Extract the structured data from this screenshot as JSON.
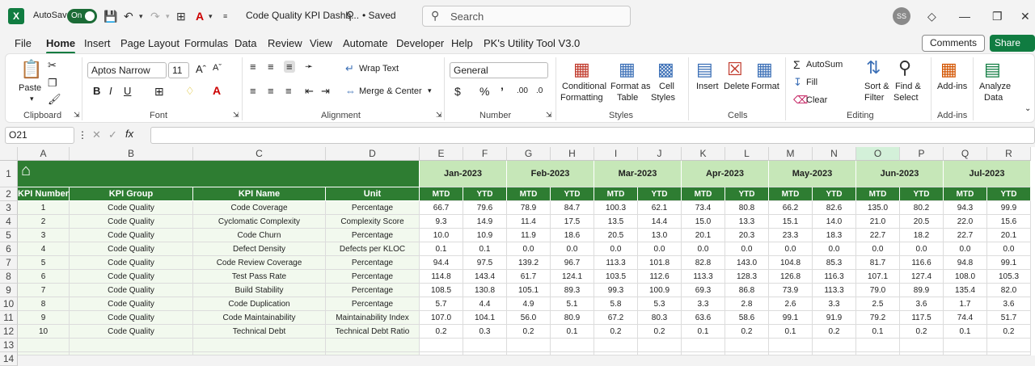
{
  "titlebar": {
    "app_icon": "X",
    "autosave_label": "AutoSave",
    "autosave_state": "On",
    "doc_title": "Code Quality KPI Dashb...",
    "saved_status": "• Saved",
    "search_placeholder": "Search",
    "user_initials": "SS"
  },
  "menu": [
    "File",
    "Home",
    "Insert",
    "Page Layout",
    "Formulas",
    "Data",
    "Review",
    "View",
    "Automate",
    "Developer",
    "Help",
    "PK's Utility Tool V3.0"
  ],
  "menu_active": "Home",
  "buttons": {
    "comments": "Comments",
    "share": "Share"
  },
  "ribbon": {
    "paste": "Paste",
    "font_name": "Aptos Narrow",
    "font_size": "11",
    "wrap_text": "Wrap Text",
    "merge_center": "Merge & Center",
    "number_format": "General",
    "conditional": "Conditional",
    "formatting": "Formatting",
    "format_as": "Format as",
    "table": "Table",
    "cell": "Cell",
    "styles_btn": "Styles",
    "insert": "Insert",
    "delete": "Delete",
    "format": "Format",
    "autosum": "AutoSum",
    "fill": "Fill",
    "clear": "Clear",
    "sort_filter_1": "Sort &",
    "sort_filter_2": "Filter",
    "find_select_1": "Find &",
    "find_select_2": "Select",
    "addins": "Add-ins",
    "analyze_1": "Analyze",
    "analyze_2": "Data",
    "groups": {
      "clipboard": "Clipboard",
      "font": "Font",
      "alignment": "Alignment",
      "number": "Number",
      "styles": "Styles",
      "cells": "Cells",
      "editing": "Editing",
      "addins": "Add-ins"
    }
  },
  "formula_bar": {
    "name_box": "O21",
    "fx": "fx"
  },
  "columns": [
    "A",
    "B",
    "C",
    "D",
    "E",
    "F",
    "G",
    "H",
    "I",
    "J",
    "K",
    "L",
    "M",
    "N",
    "O",
    "P",
    "Q",
    "R"
  ],
  "rows": [
    "1",
    "2",
    "3",
    "4",
    "5",
    "6",
    "7",
    "8",
    "9",
    "10",
    "11",
    "12",
    "13",
    "14"
  ],
  "headers": {
    "kpi_number": "KPI Number",
    "kpi_group": "KPI Group",
    "kpi_name": "KPI Name",
    "unit": "Unit",
    "mtd": "MTD",
    "ytd": "YTD"
  },
  "months": [
    "Jan-2023",
    "Feb-2023",
    "Mar-2023",
    "Apr-2023",
    "May-2023",
    "Jun-2023",
    "Jul-2023"
  ],
  "kpis": [
    {
      "num": "1",
      "group": "Code Quality",
      "name": "Code Coverage",
      "unit": "Percentage",
      "values": [
        "66.7",
        "79.6",
        "78.9",
        "84.7",
        "100.3",
        "62.1",
        "73.4",
        "80.8",
        "66.2",
        "82.6",
        "135.0",
        "80.2",
        "94.3",
        "99.9"
      ]
    },
    {
      "num": "2",
      "group": "Code Quality",
      "name": "Cyclomatic Complexity",
      "unit": "Complexity Score",
      "values": [
        "9.3",
        "14.9",
        "11.4",
        "17.5",
        "13.5",
        "14.4",
        "15.0",
        "13.3",
        "15.1",
        "14.0",
        "21.0",
        "20.5",
        "22.0",
        "15.6"
      ]
    },
    {
      "num": "3",
      "group": "Code Quality",
      "name": "Code Churn",
      "unit": "Percentage",
      "values": [
        "10.0",
        "10.9",
        "11.9",
        "18.6",
        "20.5",
        "13.0",
        "20.1",
        "20.3",
        "23.3",
        "18.3",
        "22.7",
        "18.2",
        "22.7",
        "20.1"
      ]
    },
    {
      "num": "4",
      "group": "Code Quality",
      "name": "Defect Density",
      "unit": "Defects per KLOC",
      "values": [
        "0.1",
        "0.1",
        "0.0",
        "0.0",
        "0.0",
        "0.0",
        "0.0",
        "0.0",
        "0.0",
        "0.0",
        "0.0",
        "0.0",
        "0.0",
        "0.0"
      ]
    },
    {
      "num": "5",
      "group": "Code Quality",
      "name": "Code Review Coverage",
      "unit": "Percentage",
      "values": [
        "94.4",
        "97.5",
        "139.2",
        "96.7",
        "113.3",
        "101.8",
        "82.8",
        "143.0",
        "104.8",
        "85.3",
        "81.7",
        "116.6",
        "94.8",
        "99.1"
      ]
    },
    {
      "num": "6",
      "group": "Code Quality",
      "name": "Test Pass Rate",
      "unit": "Percentage",
      "values": [
        "114.8",
        "143.4",
        "61.7",
        "124.1",
        "103.5",
        "112.6",
        "113.3",
        "128.3",
        "126.8",
        "116.3",
        "107.1",
        "127.4",
        "108.0",
        "105.3"
      ]
    },
    {
      "num": "7",
      "group": "Code Quality",
      "name": "Build Stability",
      "unit": "Percentage",
      "values": [
        "108.5",
        "130.8",
        "105.1",
        "89.3",
        "99.3",
        "100.9",
        "69.3",
        "86.8",
        "73.9",
        "113.3",
        "79.0",
        "89.9",
        "135.4",
        "82.0"
      ]
    },
    {
      "num": "8",
      "group": "Code Quality",
      "name": "Code Duplication",
      "unit": "Percentage",
      "values": [
        "5.7",
        "4.4",
        "4.9",
        "5.1",
        "5.8",
        "5.3",
        "3.3",
        "2.8",
        "2.6",
        "3.3",
        "2.5",
        "3.6",
        "1.7",
        "3.6"
      ]
    },
    {
      "num": "9",
      "group": "Code Quality",
      "name": "Code Maintainability",
      "unit": "Maintainability Index",
      "values": [
        "107.0",
        "104.1",
        "56.0",
        "80.9",
        "67.2",
        "80.3",
        "63.6",
        "58.6",
        "99.1",
        "91.9",
        "79.2",
        "117.5",
        "74.4",
        "51.7"
      ]
    },
    {
      "num": "10",
      "group": "Code Quality",
      "name": "Technical Debt",
      "unit": "Technical Debt Ratio",
      "values": [
        "0.2",
        "0.3",
        "0.2",
        "0.1",
        "0.2",
        "0.2",
        "0.1",
        "0.2",
        "0.1",
        "0.2",
        "0.1",
        "0.2",
        "0.1",
        "0.2"
      ]
    }
  ],
  "colors": {
    "excel_green": "#107c41",
    "header_green": "#2e7d32",
    "month_header": "#c6e7b8",
    "left_body": "#f2f9ee"
  }
}
